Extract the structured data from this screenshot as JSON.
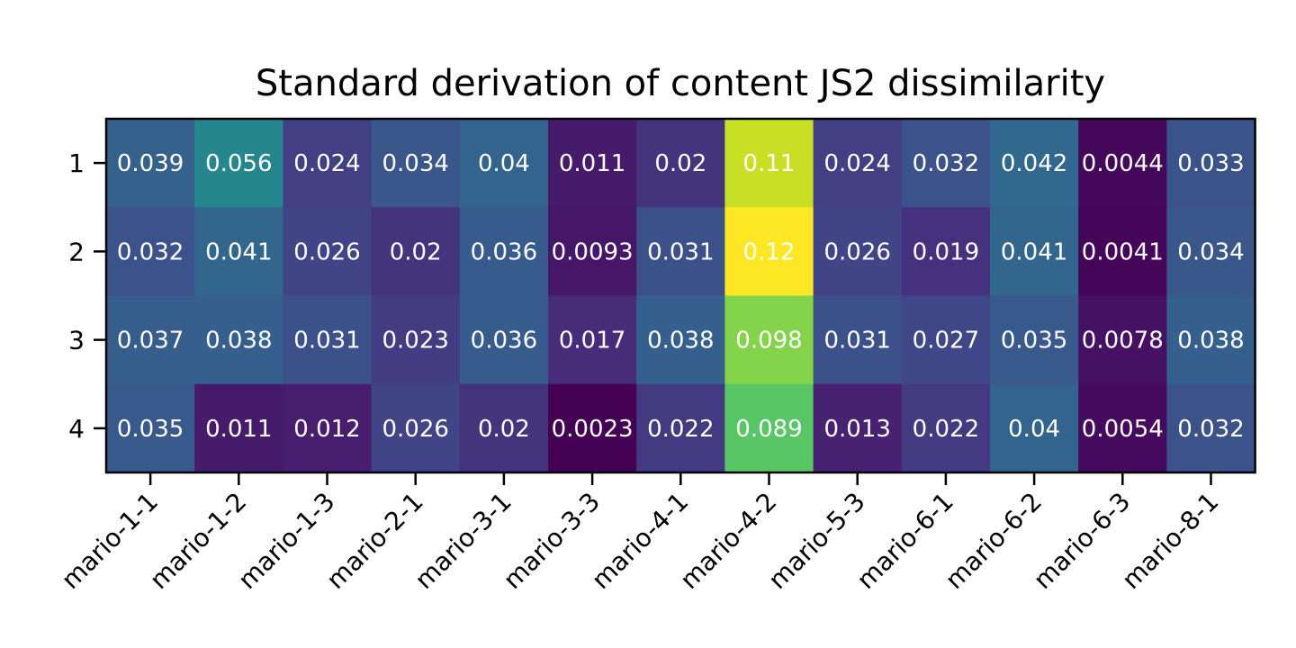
{
  "chart_data": {
    "type": "heatmap",
    "title": "Standard derivation of content JS2 dissimilarity",
    "xlabel": "",
    "ylabel": "",
    "x_categories": [
      "mario-1-1",
      "mario-1-2",
      "mario-1-3",
      "mario-2-1",
      "mario-3-1",
      "mario-3-3",
      "mario-4-1",
      "mario-4-2",
      "mario-5-3",
      "mario-6-1",
      "mario-6-2",
      "mario-6-3",
      "mario-8-1"
    ],
    "y_categories": [
      "1",
      "2",
      "3",
      "4"
    ],
    "values": [
      [
        0.039,
        0.056,
        0.024,
        0.034,
        0.04,
        0.011,
        0.02,
        0.11,
        0.024,
        0.032,
        0.042,
        0.0044,
        0.033
      ],
      [
        0.032,
        0.041,
        0.026,
        0.02,
        0.036,
        0.0093,
        0.031,
        0.12,
        0.026,
        0.019,
        0.041,
        0.0041,
        0.034
      ],
      [
        0.037,
        0.038,
        0.031,
        0.023,
        0.036,
        0.017,
        0.038,
        0.098,
        0.031,
        0.027,
        0.035,
        0.0078,
        0.038
      ],
      [
        0.035,
        0.011,
        0.012,
        0.026,
        0.02,
        0.0023,
        0.022,
        0.089,
        0.013,
        0.022,
        0.04,
        0.0054,
        0.032
      ]
    ],
    "labels": [
      [
        "0.039",
        "0.056",
        "0.024",
        "0.034",
        "0.04",
        "0.011",
        "0.02",
        "0.11",
        "0.024",
        "0.032",
        "0.042",
        "0.0044",
        "0.033"
      ],
      [
        "0.032",
        "0.041",
        "0.026",
        "0.02",
        "0.036",
        "0.0093",
        "0.031",
        "0.12",
        "0.026",
        "0.019",
        "0.041",
        "0.0041",
        "0.034"
      ],
      [
        "0.037",
        "0.038",
        "0.031",
        "0.023",
        "0.036",
        "0.017",
        "0.038",
        "0.098",
        "0.031",
        "0.027",
        "0.035",
        "0.0078",
        "0.038"
      ],
      [
        "0.035",
        "0.011",
        "0.012",
        "0.026",
        "0.02",
        "0.0023",
        "0.022",
        "0.089",
        "0.013",
        "0.022",
        "0.04",
        "0.0054",
        "0.032"
      ]
    ],
    "colormap": "viridis",
    "vmin": 0.0023,
    "vmax": 0.12,
    "grid": false
  }
}
